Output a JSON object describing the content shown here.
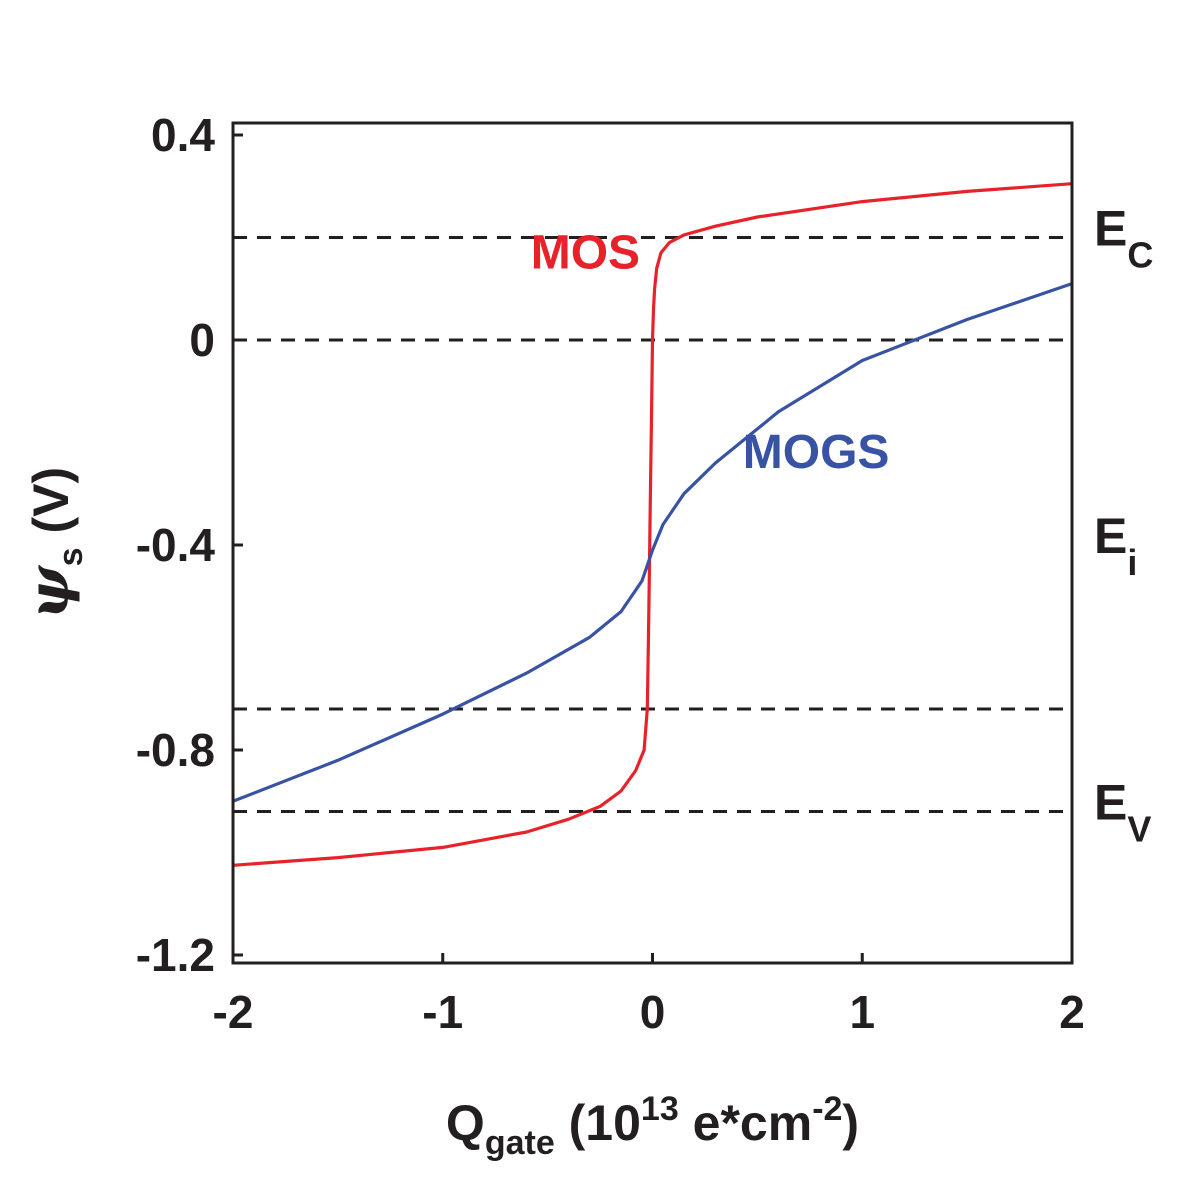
{
  "chart_data": {
    "type": "line",
    "xlabel": {
      "main": "Q",
      "sub": "gate",
      "rest_open": " (10",
      "exp": "13",
      "rest_mid": " e*cm",
      "exp2": "-2",
      "close": ")"
    },
    "ylabel": {
      "symbol": "ψ",
      "sub": "s",
      "rest": " (V)"
    },
    "xlim": [
      -2,
      2
    ],
    "ylim": [
      -1.2,
      0.4
    ],
    "xticks": [
      -2,
      -1,
      0,
      1,
      2
    ],
    "xtick_labels": [
      "-2",
      "-1",
      "0",
      "1",
      "2"
    ],
    "yticks": [
      0.4,
      0,
      -0.4,
      -0.8,
      -1.2
    ],
    "ytick_labels": [
      "0.4",
      "0",
      "-0.4",
      "-0.8",
      "-1.2"
    ],
    "grid": false,
    "reference_lines": [
      {
        "y": 0.2,
        "label": "E",
        "sub": "C"
      },
      {
        "y": 0.0,
        "label": "",
        "sub": ""
      },
      {
        "y": -0.72,
        "label": "",
        "sub": ""
      },
      {
        "y": -0.92,
        "label": "E",
        "sub": "V"
      }
    ],
    "side_labels": [
      {
        "y": -0.4,
        "label": "E",
        "sub": "i"
      }
    ],
    "series": [
      {
        "name": "MOS",
        "color": "#e8222a",
        "x": [
          -2.0,
          -1.5,
          -1.0,
          -0.6,
          -0.4,
          -0.25,
          -0.15,
          -0.08,
          -0.04,
          -0.025,
          -0.02,
          -0.015,
          -0.01,
          -0.005,
          0.0,
          0.005,
          0.01,
          0.02,
          0.04,
          0.08,
          0.15,
          0.3,
          0.5,
          1.0,
          1.5,
          2.0
        ],
        "y": [
          -1.025,
          -1.01,
          -0.99,
          -0.96,
          -0.935,
          -0.91,
          -0.88,
          -0.84,
          -0.8,
          -0.72,
          -0.6,
          -0.45,
          -0.3,
          -0.15,
          0.0,
          0.06,
          0.1,
          0.14,
          0.17,
          0.19,
          0.205,
          0.222,
          0.24,
          0.27,
          0.29,
          0.305
        ]
      },
      {
        "name": "MOGS",
        "color": "#3953a4",
        "x": [
          -2.0,
          -1.5,
          -1.0,
          -0.6,
          -0.3,
          -0.15,
          -0.05,
          0.0,
          0.05,
          0.15,
          0.3,
          0.6,
          1.0,
          1.5,
          2.0
        ],
        "y": [
          -0.9,
          -0.82,
          -0.73,
          -0.65,
          -0.58,
          -0.53,
          -0.47,
          -0.41,
          -0.36,
          -0.3,
          -0.24,
          -0.14,
          -0.04,
          0.04,
          0.11
        ]
      }
    ],
    "annotations": [
      {
        "text": "MOS",
        "x": -0.32,
        "y": 0.14,
        "color": "#e8222a"
      },
      {
        "text": "MOGS",
        "x": 0.78,
        "y": -0.25,
        "color": "#3953a4"
      }
    ]
  }
}
